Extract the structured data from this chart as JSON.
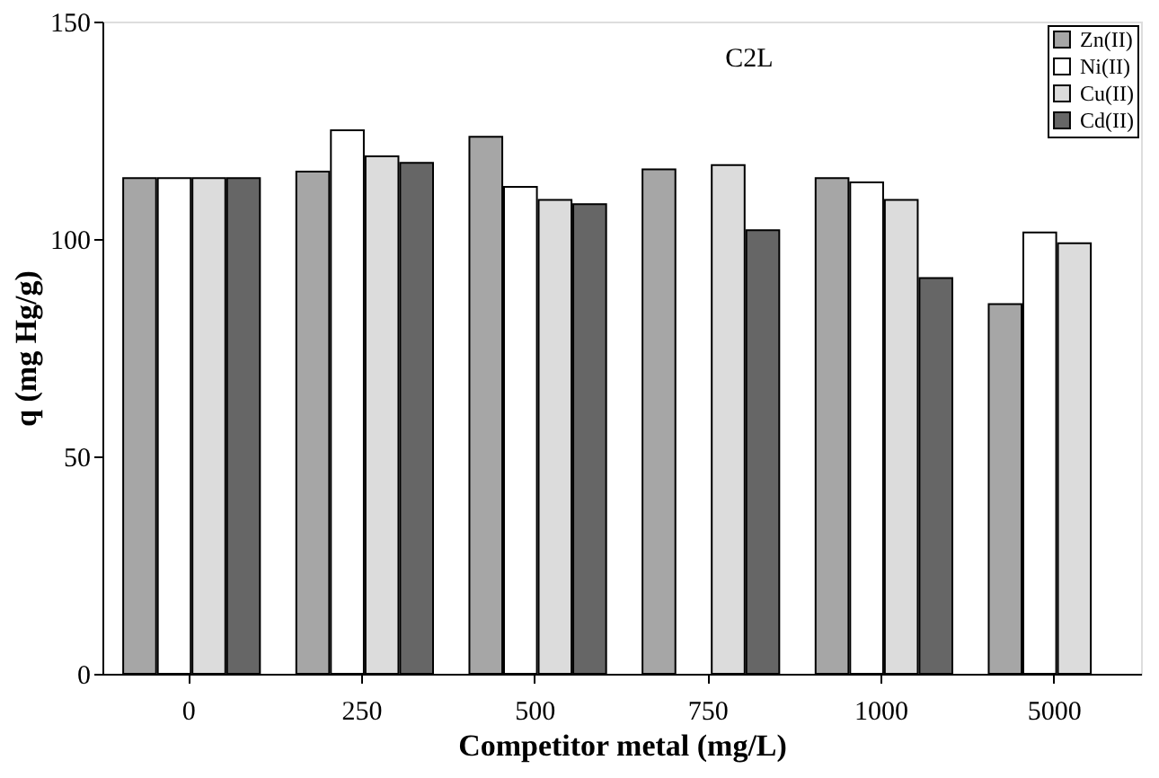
{
  "chart_data": {
    "type": "bar",
    "xlabel": "Competitor metal (mg/L)",
    "ylabel": "q (mg Hg/g)",
    "annotations": [
      "C2L"
    ],
    "categories": [
      "0",
      "250",
      "500",
      "750",
      "1000",
      "5000"
    ],
    "series": [
      {
        "name": "Zn(II)",
        "color": "#a6a6a6",
        "values": [
          114,
          115.5,
          123.5,
          116,
          114,
          85
        ]
      },
      {
        "name": "Ni(II)",
        "color": "#ffffff",
        "values": [
          114,
          125,
          112,
          null,
          113,
          101.5
        ]
      },
      {
        "name": "Cu(II)",
        "color": "#dcdcdc",
        "values": [
          114,
          119,
          109,
          117,
          109,
          99
        ]
      },
      {
        "name": "Cd(II)",
        "color": "#666666",
        "values": [
          114,
          117.5,
          108,
          102,
          91,
          null
        ]
      }
    ],
    "ylim": [
      0,
      150
    ],
    "yticks": [
      0,
      50,
      100,
      150
    ],
    "grid": false,
    "legend": "top right"
  }
}
